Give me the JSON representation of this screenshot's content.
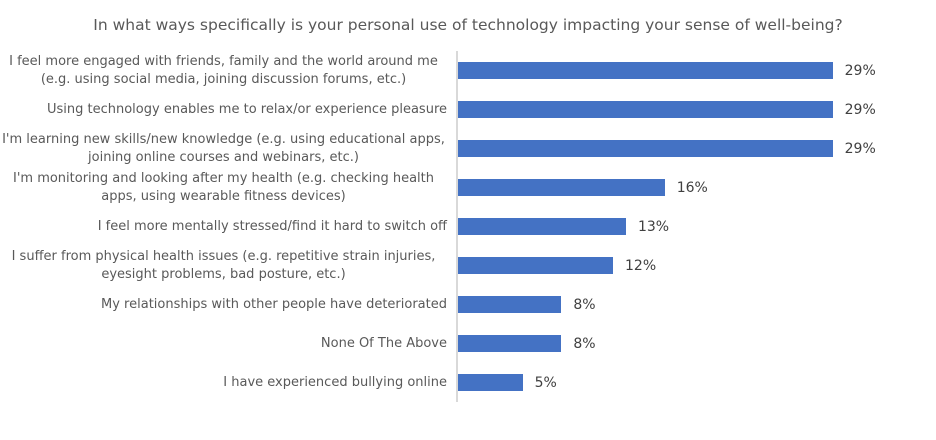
{
  "chart_data": {
    "type": "bar",
    "orientation": "horizontal",
    "title": "In what ways specifically is your personal use of technology impacting your sense of well-being?",
    "categories": [
      "I feel more engaged with friends, family and the world around me (e.g. using social media, joining discussion forums, etc.)",
      "Using technology enables me to relax/or experience pleasure",
      "I'm learning new skills/new knowledge (e.g. using educational apps, joining online courses and webinars, etc.)",
      "I'm monitoring and looking after my health (e.g. checking health apps, using wearable fitness devices)",
      "I feel more mentally stressed/find it hard to switch off",
      "I suffer from physical health issues (e.g. repetitive strain injuries, eyesight problems, bad posture, etc.)",
      "My relationships with other people have deteriorated",
      "None Of The Above",
      "I have experienced bullying online"
    ],
    "values": [
      29,
      29,
      29,
      16,
      13,
      12,
      8,
      8,
      5
    ],
    "value_labels": [
      "29%",
      "29%",
      "29%",
      "16%",
      "13%",
      "12%",
      "8%",
      "8%",
      "5%"
    ],
    "xlabel": "",
    "ylabel": "",
    "xlim": [
      0,
      37
    ],
    "grid": false,
    "legend": false,
    "colors": {
      "bar": "#4472C4",
      "axis_line": "#D9D9D9",
      "category_text": "#595959",
      "value_text": "#404040",
      "title_text": "#595959",
      "background": "#FFFFFF"
    }
  }
}
